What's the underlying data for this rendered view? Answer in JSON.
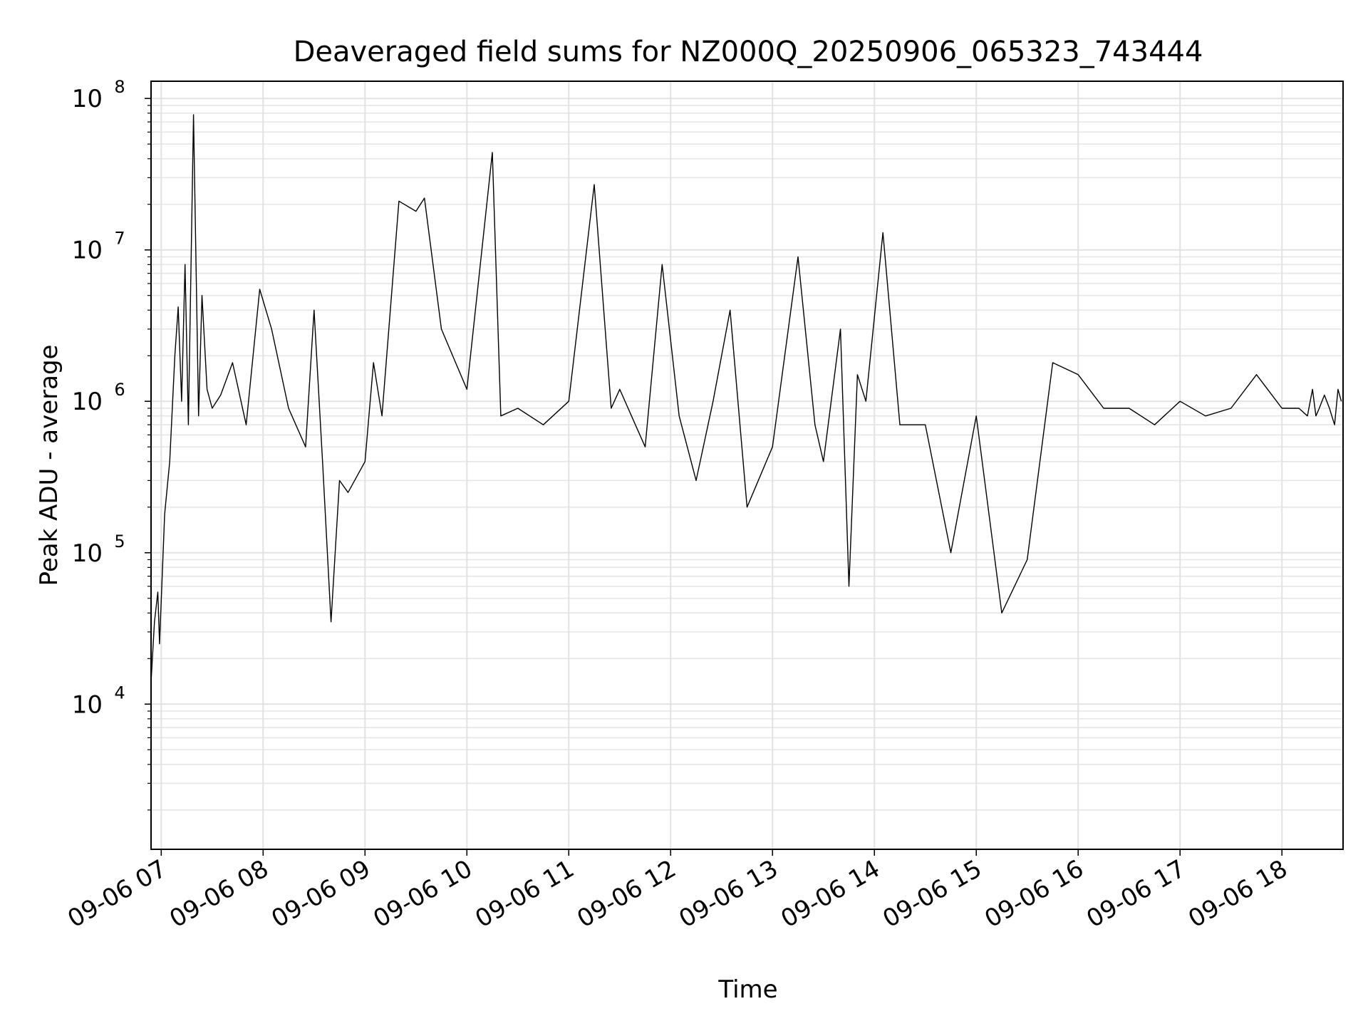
{
  "chart_data": {
    "type": "line",
    "title": "Deaveraged field sums for NZ000Q_20250906_065323_743444",
    "xlabel": "Time",
    "ylabel": "Peak ADU - average",
    "yscale": "log",
    "ylim": [
      1100,
      130000000
    ],
    "xlim": [
      "2025-09-06 06:54",
      "2025-09-06 18:36"
    ],
    "grid": true,
    "line_color": "#000000",
    "x_tick_labels": [
      "09-06 07",
      "09-06 08",
      "09-06 09",
      "09-06 10",
      "09-06 11",
      "09-06 12",
      "09-06 13",
      "09-06 14",
      "09-06 15",
      "09-06 16",
      "09-06 17",
      "09-06 18"
    ],
    "y_ticks": [
      {
        "base": "10",
        "exp": "4"
      },
      {
        "base": "10",
        "exp": "5"
      },
      {
        "base": "10",
        "exp": "6"
      },
      {
        "base": "10",
        "exp": "7"
      },
      {
        "base": "10",
        "exp": "8"
      }
    ],
    "series": [
      {
        "x": [
          "2025-09-06 06:54",
          "2025-09-06 06:56",
          "2025-09-06 06:58",
          "2025-09-06 06:59",
          "2025-09-06 07:02",
          "2025-09-06 07:05",
          "2025-09-06 07:08",
          "2025-09-06 07:10",
          "2025-09-06 07:12",
          "2025-09-06 07:14",
          "2025-09-06 07:16",
          "2025-09-06 07:19",
          "2025-09-06 07:22",
          "2025-09-06 07:24",
          "2025-09-06 07:27",
          "2025-09-06 07:30",
          "2025-09-06 07:35",
          "2025-09-06 07:42",
          "2025-09-06 07:50",
          "2025-09-06 07:58",
          "2025-09-06 08:05",
          "2025-09-06 08:15",
          "2025-09-06 08:25",
          "2025-09-06 08:30",
          "2025-09-06 08:35",
          "2025-09-06 08:40",
          "2025-09-06 08:45",
          "2025-09-06 08:50",
          "2025-09-06 09:00",
          "2025-09-06 09:05",
          "2025-09-06 09:10",
          "2025-09-06 09:20",
          "2025-09-06 09:30",
          "2025-09-06 09:35",
          "2025-09-06 09:45",
          "2025-09-06 10:00",
          "2025-09-06 10:15",
          "2025-09-06 10:20",
          "2025-09-06 10:30",
          "2025-09-06 10:45",
          "2025-09-06 11:00",
          "2025-09-06 11:15",
          "2025-09-06 11:25",
          "2025-09-06 11:30",
          "2025-09-06 11:45",
          "2025-09-06 11:55",
          "2025-09-06 12:05",
          "2025-09-06 12:15",
          "2025-09-06 12:25",
          "2025-09-06 12:35",
          "2025-09-06 12:45",
          "2025-09-06 13:00",
          "2025-09-06 13:15",
          "2025-09-06 13:25",
          "2025-09-06 13:30",
          "2025-09-06 13:40",
          "2025-09-06 13:45",
          "2025-09-06 13:50",
          "2025-09-06 13:55",
          "2025-09-06 14:05",
          "2025-09-06 14:15",
          "2025-09-06 14:30",
          "2025-09-06 14:45",
          "2025-09-06 15:00",
          "2025-09-06 15:15",
          "2025-09-06 15:30",
          "2025-09-06 15:45",
          "2025-09-06 16:00",
          "2025-09-06 16:15",
          "2025-09-06 16:30",
          "2025-09-06 16:45",
          "2025-09-06 17:00",
          "2025-09-06 17:15",
          "2025-09-06 17:30",
          "2025-09-06 17:45",
          "2025-09-06 18:00",
          "2025-09-06 18:10",
          "2025-09-06 18:15",
          "2025-09-06 18:18",
          "2025-09-06 18:20",
          "2025-09-06 18:22",
          "2025-09-06 18:25",
          "2025-09-06 18:28",
          "2025-09-06 18:31",
          "2025-09-06 18:33",
          "2025-09-06 18:35"
        ],
        "y": [
          14000,
          35000,
          55000,
          25000,
          180000,
          400000,
          2000000,
          4200000,
          1000000,
          8000000,
          700000,
          78000000,
          800000,
          5000000,
          1200000,
          900000,
          1100000,
          1800000,
          700000,
          5500000,
          3000000,
          900000,
          500000,
          4000000,
          400000,
          35000,
          300000,
          250000,
          400000,
          1800000,
          800000,
          21000000,
          18000000,
          22000000,
          3000000,
          1200000,
          44000000,
          800000,
          900000,
          700000,
          1000000,
          27000000,
          900000,
          1200000,
          500000,
          8000000,
          800000,
          300000,
          1000000,
          4000000,
          200000,
          500000,
          9000000,
          700000,
          400000,
          3000000,
          60000,
          1500000,
          1000000,
          13000000,
          700000,
          700000,
          100000,
          800000,
          40000,
          90000,
          1800000,
          1500000,
          900000,
          900000,
          700000,
          1000000,
          800000,
          900000,
          1500000,
          900000,
          900000,
          800000,
          1200000,
          800000,
          900000,
          1100000,
          900000,
          700000,
          1200000,
          1000000
        ]
      }
    ]
  }
}
